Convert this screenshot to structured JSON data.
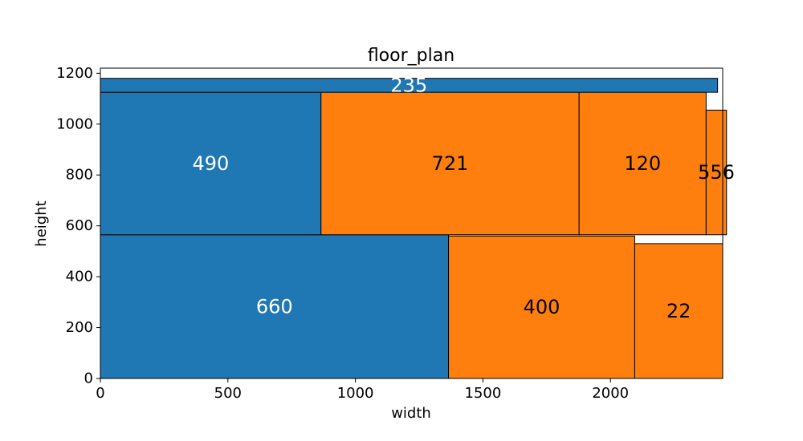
{
  "chart_data": {
    "type": "treemap",
    "title": "floor_plan",
    "xlabel": "width",
    "ylabel": "height",
    "xlim": [
      0,
      2440
    ],
    "ylim": [
      0,
      1220
    ],
    "xticks": [
      0,
      500,
      1000,
      1500,
      2000
    ],
    "yticks": [
      0,
      200,
      400,
      600,
      800,
      1000,
      1200
    ],
    "colors": {
      "blue": "#1f77b4",
      "orange": "#ff7f0e",
      "edge": "#000000"
    },
    "rects": [
      {
        "label": "660",
        "x": 0,
        "y": 0,
        "w": 1365,
        "h": 565,
        "color": "blue",
        "text_color": "#ffffff"
      },
      {
        "label": "400",
        "x": 1365,
        "y": 0,
        "w": 730,
        "h": 560,
        "color": "orange",
        "text_color": "#000000"
      },
      {
        "label": "22",
        "x": 2095,
        "y": 0,
        "w": 345,
        "h": 530,
        "color": "orange",
        "text_color": "#000000"
      },
      {
        "label": "490",
        "x": 0,
        "y": 565,
        "w": 865,
        "h": 560,
        "color": "blue",
        "text_color": "#ffffff"
      },
      {
        "label": "721",
        "x": 865,
        "y": 565,
        "w": 1012,
        "h": 560,
        "color": "orange",
        "text_color": "#000000"
      },
      {
        "label": "120",
        "x": 1877,
        "y": 565,
        "w": 498,
        "h": 560,
        "color": "orange",
        "text_color": "#000000"
      },
      {
        "label": "556",
        "x": 2375,
        "y": 565,
        "w": 80,
        "h": 490,
        "color": "orange",
        "text_color": "#000000"
      },
      {
        "label": "235",
        "x": 0,
        "y": 1125,
        "w": 2420,
        "h": 55,
        "color": "blue",
        "text_color": "#ffffff"
      }
    ]
  }
}
